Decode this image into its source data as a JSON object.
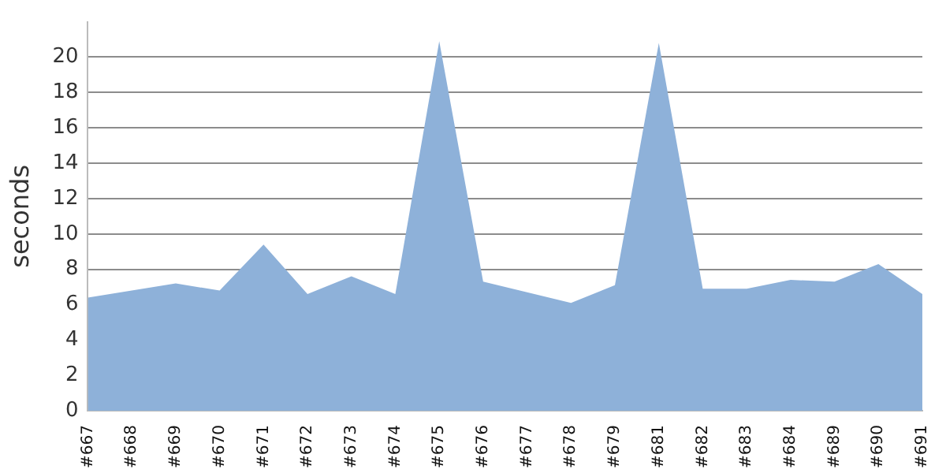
{
  "chart_data": {
    "type": "area",
    "ylabel": "seconds",
    "categories": [
      "#667",
      "#668",
      "#669",
      "#670",
      "#671",
      "#672",
      "#673",
      "#674",
      "#675",
      "#676",
      "#677",
      "#678",
      "#679",
      "#681",
      "#682",
      "#683",
      "#684",
      "#689",
      "#690",
      "#691"
    ],
    "values": [
      6.4,
      6.8,
      7.2,
      6.8,
      9.4,
      6.6,
      7.6,
      6.6,
      20.9,
      7.3,
      6.7,
      6.1,
      7.1,
      20.8,
      6.9,
      6.9,
      7.4,
      7.3,
      8.3,
      6.6
    ],
    "color": "#8eb1d9",
    "ylim": [
      0,
      22
    ],
    "yticks": [
      0,
      2,
      4,
      6,
      8,
      10,
      12,
      14,
      16,
      18,
      20
    ],
    "grid": "y"
  }
}
